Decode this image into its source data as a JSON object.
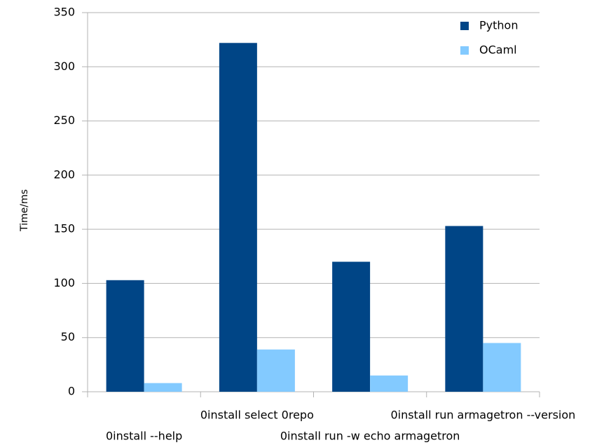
{
  "chart_data": {
    "type": "bar",
    "y_label": "Time/ms",
    "categories": [
      "0install --help",
      "0install select 0repo",
      "0install run -w echo armagetron",
      "0install run armagetron --version"
    ],
    "series": [
      {
        "name": "Python",
        "color": "#004586",
        "values": [
          103,
          322,
          120,
          153
        ]
      },
      {
        "name": "OCaml",
        "color": "#83caff",
        "values": [
          8,
          39,
          15,
          45
        ]
      }
    ],
    "ylim": [
      0,
      350
    ],
    "yticks": [
      0,
      50,
      100,
      150,
      200,
      250,
      300,
      350
    ],
    "grid": true,
    "legend": "upper right"
  }
}
